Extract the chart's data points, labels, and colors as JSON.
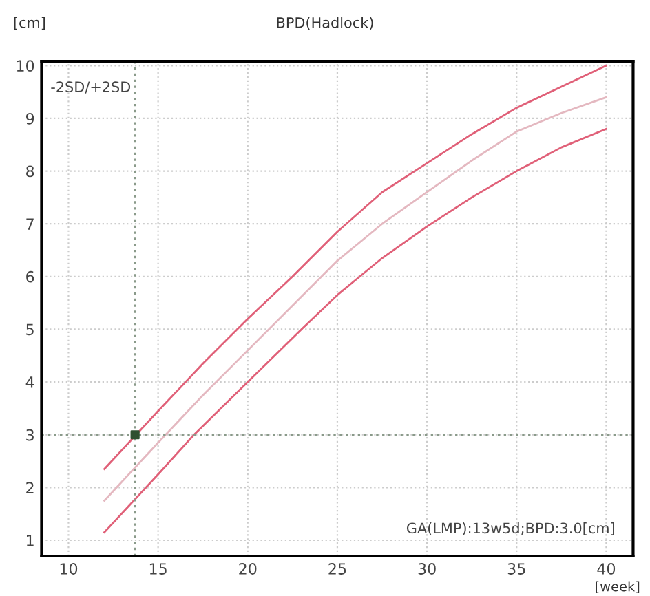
{
  "chart_data": {
    "type": "line",
    "title": "BPD(Hadlock)",
    "xlabel": "[week]",
    "ylabel": "[cm]",
    "series": [
      {
        "color": "#e06078",
        "x": [
          12,
          15,
          17.5,
          20,
          22.5,
          25,
          27.5,
          30,
          32.5,
          35,
          37.5,
          40
        ],
        "values": [
          2.35,
          3.45,
          4.35,
          5.2,
          6.0,
          6.85,
          7.6,
          8.15,
          8.7,
          9.2,
          9.6,
          10.0
        ]
      },
      {
        "color": "#e4b8c0",
        "x": [
          12,
          15,
          17.5,
          20,
          22.5,
          25,
          27.5,
          30,
          32.5,
          35,
          37.5,
          40
        ],
        "values": [
          1.75,
          2.85,
          3.75,
          4.6,
          5.45,
          6.3,
          7.0,
          7.6,
          8.2,
          8.75,
          9.1,
          9.4
        ]
      },
      {
        "color": "#e06078",
        "x": [
          12,
          15,
          17,
          20,
          23,
          25,
          27.5,
          30,
          32.5,
          35,
          37.5,
          40
        ],
        "values": [
          1.15,
          2.25,
          3.0,
          4.0,
          5.0,
          5.65,
          6.35,
          6.95,
          7.5,
          8.0,
          8.45,
          8.8
        ]
      },
      {
        "type": "scatter",
        "color": "#305030",
        "marker": "square",
        "x": [
          13.714
        ],
        "values": [
          3.0
        ]
      }
    ],
    "ref_lines": [
      {
        "axis": "x",
        "value": 13.714,
        "color": "#8a9a8a",
        "line_style": "dotted"
      },
      {
        "axis": "y",
        "value": 3.0,
        "color": "#8a9a8a",
        "line_style": "dotted"
      }
    ],
    "annotations": [
      "-2SD/+2SD",
      "GA(LMP):13w5d;BPD:3.0[cm]"
    ],
    "xlim": [
      8.5,
      41.5
    ],
    "ylim": [
      0.7,
      10.08
    ],
    "xticks": [
      10,
      15,
      20,
      25,
      30,
      35,
      40
    ],
    "yticks": [
      1,
      2,
      3,
      4,
      5,
      6,
      7,
      8,
      9,
      10
    ],
    "grid": true,
    "legend": false,
    "marker": "none",
    "line_style": "solid"
  }
}
